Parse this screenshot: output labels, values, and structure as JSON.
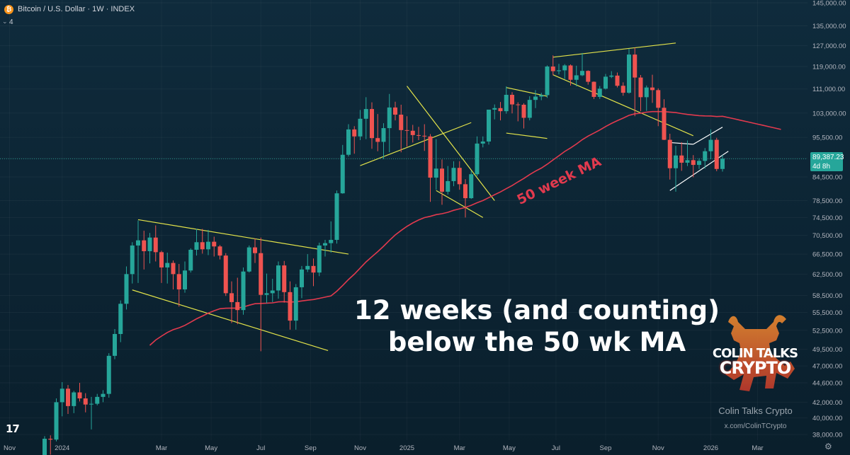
{
  "header": {
    "symbol_icon": "bitcoin-icon",
    "title": "Bitcoin / U.S. Dollar · 1W · INDEX",
    "indicators_count": "4"
  },
  "chart_data": {
    "type": "candlestick",
    "x_tick_labels": [
      "Nov",
      "2024",
      "Mar",
      "May",
      "Jul",
      "Sep",
      "Nov",
      "2025",
      "Mar",
      "May",
      "Jul",
      "Sep",
      "Nov",
      "2026",
      "Mar"
    ],
    "y_tick_labels": [
      "145,000.00",
      "135,000.00",
      "127,000.00",
      "119,000.00",
      "111,000.00",
      "103,000.00",
      "95,500.00",
      "89,500.00",
      "84,500.00",
      "78,500.00",
      "74,500.00",
      "70,500.00",
      "66,500.00",
      "62,500.00",
      "58,500.00",
      "55,500.00",
      "52,500.00",
      "49,500.00",
      "47,000.00",
      "44,600.00",
      "42,000.00",
      "40,000.00",
      "38,000.00"
    ],
    "y_scale": "log",
    "y_range": [
      37000,
      148000
    ],
    "last_price": "89,387.23",
    "countdown": "4d 8h",
    "up_color": "#26a69a",
    "down_color": "#ef5350",
    "ma_label": "50 week MA",
    "ma_color": "#e23a4e",
    "ohlc": [
      [
        34600,
        37800,
        34300,
        37500
      ],
      [
        37500,
        37900,
        35700,
        37400
      ],
      [
        37400,
        42500,
        37200,
        42000
      ],
      [
        42000,
        44700,
        40200,
        43800
      ],
      [
        43800,
        44300,
        40500,
        41500
      ],
      [
        41500,
        43500,
        40600,
        43300
      ],
      [
        43300,
        44600,
        42100,
        42500
      ],
      [
        42500,
        43200,
        40700,
        41700
      ],
      [
        41700,
        42700,
        38600,
        41800
      ],
      [
        41800,
        43100,
        41600,
        42700
      ],
      [
        42700,
        43600,
        42000,
        43100
      ],
      [
        43100,
        48900,
        42600,
        48500
      ],
      [
        48500,
        52700,
        48000,
        51900
      ],
      [
        51900,
        57600,
        50600,
        57000
      ],
      [
        57000,
        64000,
        56000,
        62500
      ],
      [
        62500,
        69000,
        60700,
        68300
      ],
      [
        68300,
        73800,
        60800,
        69400
      ],
      [
        69400,
        71500,
        63400,
        67100
      ],
      [
        67100,
        71000,
        64600,
        70000
      ],
      [
        70000,
        72700,
        65000,
        66900
      ],
      [
        66900,
        67200,
        60800,
        63800
      ],
      [
        63800,
        66800,
        60700,
        64700
      ],
      [
        64700,
        65200,
        59600,
        62500
      ],
      [
        62500,
        64500,
        56500,
        59600
      ],
      [
        59600,
        65000,
        59000,
        63200
      ],
      [
        63200,
        67700,
        62800,
        67400
      ],
      [
        67400,
        71900,
        66200,
        69000
      ],
      [
        69000,
        71900,
        66600,
        67500
      ],
      [
        67500,
        71700,
        66300,
        69100
      ],
      [
        69100,
        70200,
        66000,
        68100
      ],
      [
        68100,
        68400,
        65400,
        66200
      ],
      [
        66200,
        66700,
        58400,
        58900
      ],
      [
        58900,
        61100,
        53700,
        57300
      ],
      [
        57300,
        61800,
        53500,
        55900
      ],
      [
        55900,
        63800,
        55100,
        63000
      ],
      [
        63000,
        68300,
        62800,
        67900
      ],
      [
        67900,
        69800,
        64700,
        66700
      ],
      [
        66700,
        70000,
        49200,
        58600
      ],
      [
        58600,
        62600,
        57100,
        58900
      ],
      [
        58900,
        61600,
        57300,
        59400
      ],
      [
        59400,
        65000,
        57900,
        64200
      ],
      [
        64200,
        65100,
        57200,
        59100
      ],
      [
        59100,
        61100,
        52600,
        54100
      ],
      [
        54100,
        60600,
        52600,
        60000
      ],
      [
        60000,
        64100,
        58000,
        63400
      ],
      [
        63400,
        66500,
        62900,
        64100
      ],
      [
        64100,
        65600,
        60200,
        62800
      ],
      [
        62800,
        68900,
        62100,
        68300
      ],
      [
        68300,
        69500,
        66000,
        68800
      ],
      [
        68800,
        73600,
        66800,
        69500
      ],
      [
        69500,
        81000,
        68700,
        80300
      ],
      [
        80300,
        93300,
        80200,
        90500
      ],
      [
        90500,
        99500,
        90000,
        97900
      ],
      [
        97900,
        98900,
        90800,
        95800
      ],
      [
        95800,
        104000,
        94700,
        101200
      ],
      [
        101200,
        108200,
        95000,
        104300
      ],
      [
        104300,
        106500,
        92200,
        95300
      ],
      [
        95300,
        102700,
        91500,
        94200
      ],
      [
        94200,
        99800,
        89300,
        98300
      ],
      [
        98300,
        109300,
        91200,
        104800
      ],
      [
        104800,
        106700,
        100700,
        102500
      ],
      [
        102500,
        105700,
        91200,
        97700
      ],
      [
        97700,
        102000,
        92800,
        97500
      ],
      [
        97500,
        99300,
        94000,
        96200
      ],
      [
        96200,
        98700,
        94700,
        96000
      ],
      [
        96000,
        99500,
        91600,
        95800
      ],
      [
        95800,
        96500,
        78200,
        84300
      ],
      [
        84300,
        95000,
        81200,
        86700
      ],
      [
        86700,
        89200,
        77500,
        80700
      ],
      [
        80700,
        87400,
        80000,
        83400
      ],
      [
        83400,
        88700,
        82100,
        86900
      ],
      [
        86900,
        88700,
        81200,
        82600
      ],
      [
        82600,
        83900,
        74500,
        79100
      ],
      [
        79100,
        86100,
        78900,
        85200
      ],
      [
        85200,
        95800,
        84700,
        93700
      ],
      [
        93700,
        95800,
        92600,
        94300
      ],
      [
        94300,
        103800,
        93400,
        104100
      ],
      [
        104100,
        105800,
        101000,
        104600
      ],
      [
        104600,
        106600,
        100700,
        103600
      ],
      [
        103600,
        111900,
        102800,
        109000
      ],
      [
        109000,
        109900,
        102900,
        105800
      ],
      [
        105800,
        106500,
        100400,
        105700
      ],
      [
        105700,
        106200,
        98200,
        101500
      ],
      [
        101500,
        108500,
        100700,
        107300
      ],
      [
        107300,
        110600,
        104600,
        108400
      ],
      [
        108400,
        109700,
        107200,
        108900
      ],
      [
        108900,
        119400,
        108000,
        119000
      ],
      [
        119000,
        123200,
        115800,
        117300
      ],
      [
        117300,
        120000,
        116100,
        117600
      ],
      [
        117600,
        119900,
        114500,
        119400
      ],
      [
        119400,
        119800,
        112200,
        114200
      ],
      [
        114200,
        119300,
        111900,
        115800
      ],
      [
        115800,
        124100,
        115500,
        117400
      ],
      [
        117400,
        117600,
        112500,
        113500
      ],
      [
        113500,
        113600,
        107600,
        108300
      ],
      [
        108300,
        112000,
        107600,
        111100
      ],
      [
        111100,
        116300,
        110800,
        115300
      ],
      [
        115300,
        117300,
        114800,
        115700
      ],
      [
        115700,
        116800,
        111500,
        112100
      ],
      [
        112100,
        113300,
        108700,
        109700
      ],
      [
        109700,
        125800,
        109400,
        123500
      ],
      [
        123500,
        126200,
        102000,
        115000
      ],
      [
        115000,
        115900,
        103600,
        108200
      ],
      [
        108200,
        112200,
        103700,
        111500
      ],
      [
        111500,
        116000,
        106300,
        110600
      ],
      [
        110600,
        111200,
        98900,
        104700
      ],
      [
        104700,
        107500,
        94700,
        94800
      ],
      [
        94800,
        96600,
        83800,
        86800
      ],
      [
        86800,
        93000,
        80700,
        90300
      ],
      [
        90300,
        94100,
        86100,
        88300
      ],
      [
        88300,
        94600,
        87400,
        89000
      ],
      [
        89000,
        90400,
        84400,
        87700
      ],
      [
        87700,
        89500,
        86600,
        88800
      ],
      [
        88800,
        92400,
        86700,
        91500
      ],
      [
        91500,
        97900,
        89300,
        94800
      ],
      [
        94800,
        95400,
        86000,
        86600
      ],
      [
        86600,
        90400,
        85900,
        89400
      ]
    ]
  },
  "overlay": {
    "headline_line1": "12 weeks (and counting)",
    "headline_line2": "below the 50 wk MA"
  },
  "watermark": {
    "logo_line1": "COLIN TALKS",
    "logo_line2": "CRYPTO",
    "name": "Colin Talks Crypto",
    "handle": "x.com/ColinTCrypto",
    "tradingview_logo": "tradingview-logo-icon"
  }
}
